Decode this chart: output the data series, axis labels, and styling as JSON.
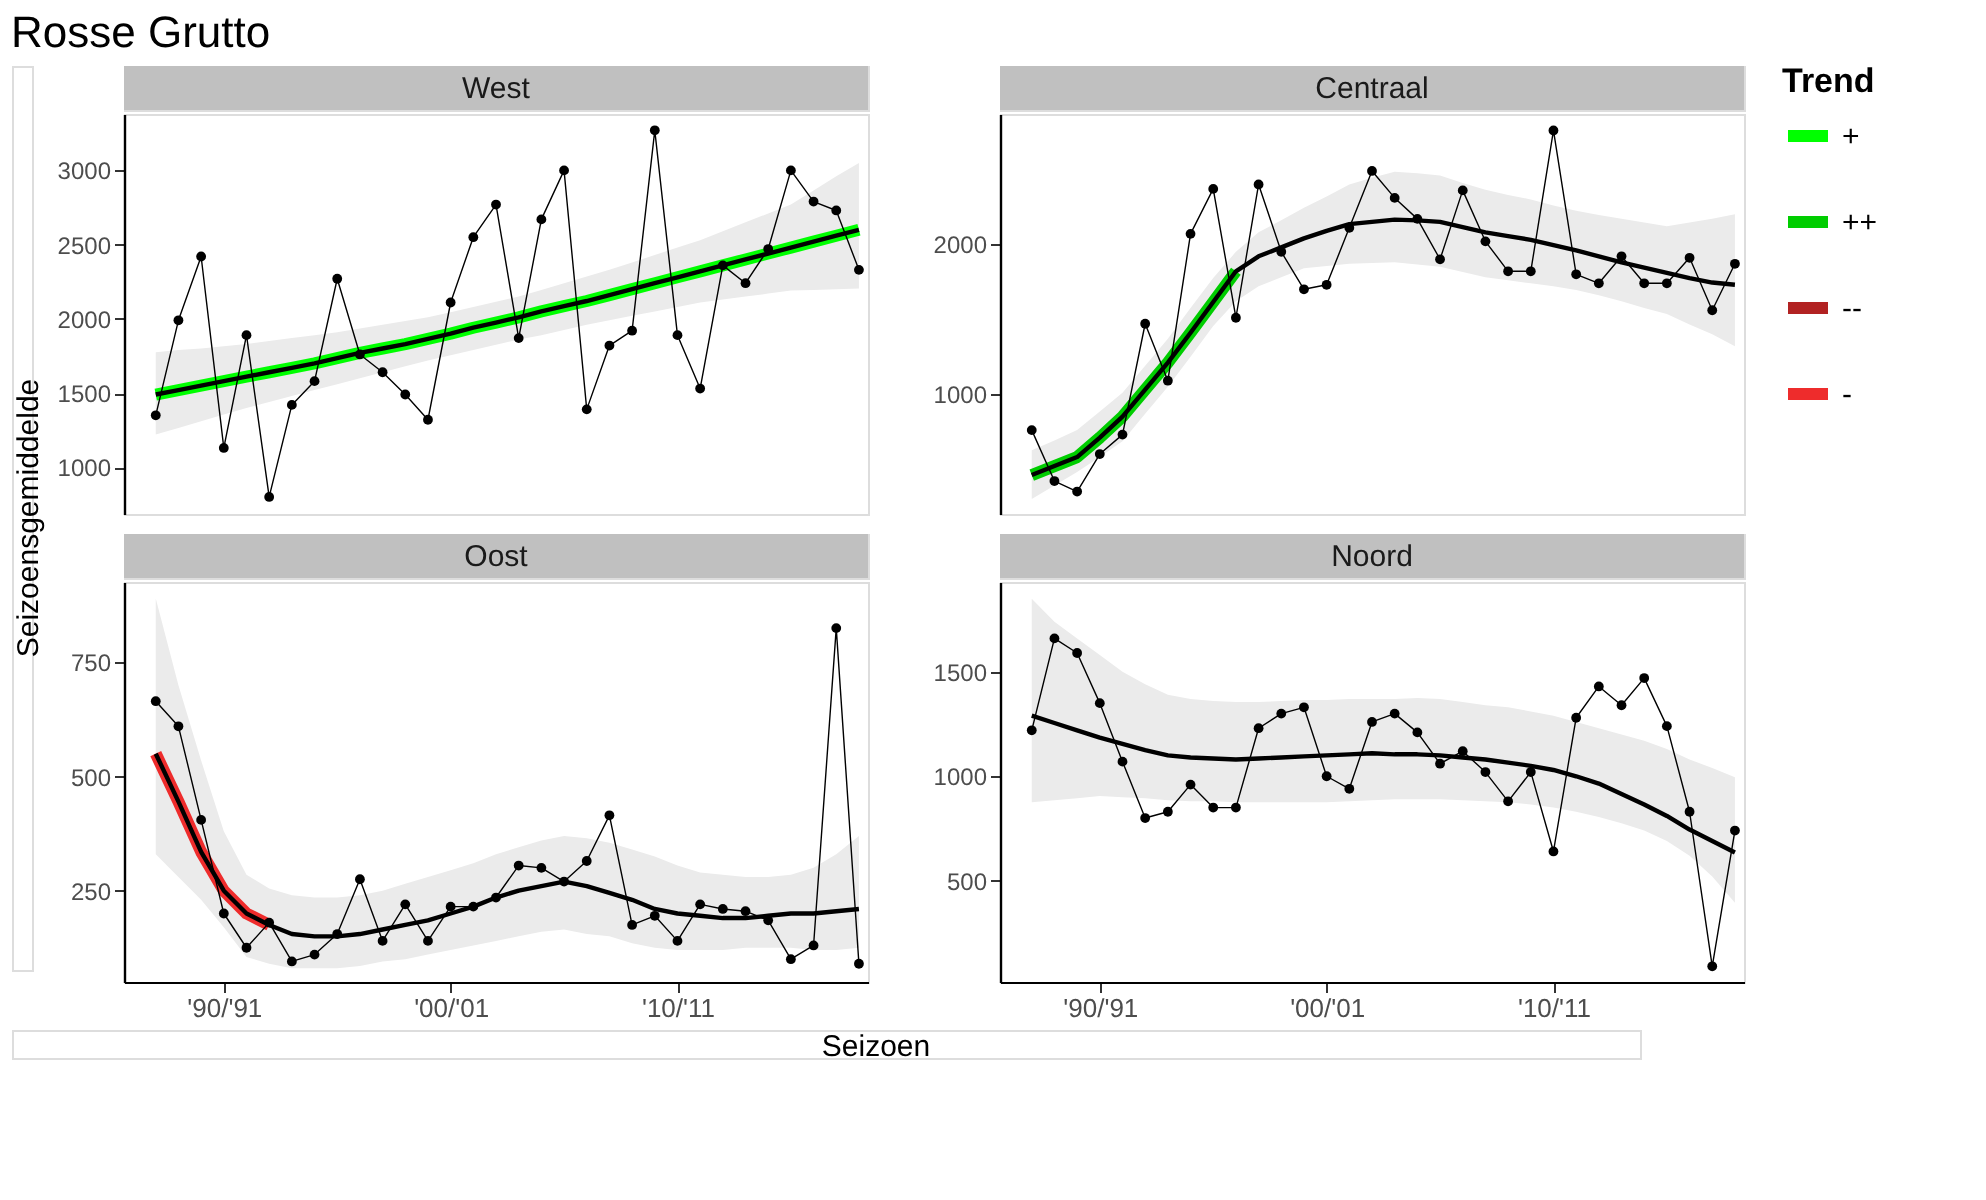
{
  "chart_data": [
    {
      "type": "line",
      "title": "West",
      "annotations": [
        "Rosse Grutto"
      ],
      "xlabel": "Seizoen",
      "ylabel": "Seizoensgemiddelde",
      "legend_title": "Trend",
      "legend": "right",
      "tick_labels": "y",
      "line_style": "solid",
      "categories": [
        null,
        null,
        null,
        null,
        null,
        null,
        null,
        null,
        null,
        null,
        null,
        null,
        null,
        null,
        null,
        null,
        null,
        null,
        null,
        null,
        null,
        null,
        null,
        null,
        null,
        null,
        null,
        null,
        null,
        null,
        null,
        null
      ],
      "ylim": [
        685,
        3380
      ],
      "yticks": [
        1000,
        1500,
        2000,
        2500,
        3000
      ],
      "series": [
        {
          "marker": "circle",
          "color": "#000000",
          "values": [
            1350,
            1990,
            2420,
            1130,
            1890,
            800,
            1420,
            1580,
            2270,
            1760,
            1640,
            1490,
            1320,
            2110,
            2550,
            2770,
            1870,
            2670,
            3000,
            1390,
            1820,
            1920,
            3270,
            1890,
            1530,
            2360,
            2240,
            2470,
            3000,
            2790,
            2730,
            2330
          ]
        },
        {
          "name": "+",
          "color": "#00ff00",
          "values": [
            1490,
            1520,
            1550,
            1580,
            1610,
            1640,
            1670,
            1700,
            1735,
            1770,
            1800,
            1830,
            1865,
            1900,
            1940,
            1975,
            2010,
            2050,
            2085,
            2120,
            2160,
            2200,
            2240,
            2280,
            2320,
            2360,
            2400,
            2440,
            2480,
            2520,
            2560,
            2600
          ]
        },
        {
          "color": "#000000",
          "values": [
            1490,
            1520,
            1550,
            1580,
            1610,
            1640,
            1670,
            1700,
            1735,
            1770,
            1800,
            1830,
            1865,
            1900,
            1940,
            1975,
            2010,
            2050,
            2085,
            2120,
            2160,
            2200,
            2240,
            2280,
            2320,
            2360,
            2400,
            2440,
            2480,
            2520,
            2560,
            2600
          ],
          "lower": [
            1220,
            1265,
            1310,
            1355,
            1400,
            1440,
            1480,
            1520,
            1560,
            1600,
            1640,
            1680,
            1720,
            1755,
            1790,
            1825,
            1860,
            1890,
            1925,
            1960,
            1990,
            2020,
            2050,
            2080,
            2110,
            2130,
            2150,
            2170,
            2190,
            2195,
            2200,
            2205
          ],
          "upper": [
            1775,
            1790,
            1800,
            1815,
            1830,
            1850,
            1870,
            1890,
            1910,
            1935,
            1960,
            1985,
            2010,
            2045,
            2080,
            2115,
            2150,
            2195,
            2240,
            2285,
            2330,
            2380,
            2430,
            2480,
            2530,
            2590,
            2650,
            2710,
            2770,
            2865,
            2960,
            3050
          ]
        }
      ]
    },
    {
      "type": "line",
      "title": "Centraal",
      "tick_labels": "y",
      "line_style": "solid",
      "categories": [
        null,
        null,
        null,
        null,
        null,
        null,
        null,
        null,
        null,
        null,
        null,
        null,
        null,
        null,
        null,
        null,
        null,
        null,
        null,
        null,
        null,
        null,
        null,
        null,
        null,
        null,
        null,
        null,
        null,
        null,
        null,
        null
      ],
      "ylim": [
        200,
        2870
      ],
      "yticks": [
        1000,
        2000
      ],
      "series": [
        {
          "marker": "circle",
          "color": "#000000",
          "values": [
            760,
            420,
            350,
            600,
            730,
            1470,
            1090,
            2070,
            2370,
            1510,
            2400,
            1950,
            1700,
            1730,
            2110,
            2490,
            2310,
            2170,
            1900,
            2360,
            2020,
            1820,
            1820,
            2760,
            1800,
            1740,
            1920,
            1740,
            1740,
            1910,
            1560,
            1870
          ]
        },
        {
          "name": "++",
          "color": "#00cd00",
          "values": [
            460,
            520,
            580,
            710,
            850,
            1030,
            1210,
            1410,
            1615,
            1820,
            null,
            null,
            null,
            null,
            null,
            null,
            null,
            null,
            null,
            null,
            null,
            null,
            null,
            null,
            null,
            null,
            null,
            null,
            null,
            null,
            null,
            null
          ]
        },
        {
          "color": "#000000",
          "values": [
            460,
            520,
            580,
            710,
            850,
            1030,
            1210,
            1410,
            1615,
            1820,
            1920,
            1980,
            2040,
            2090,
            2135,
            2150,
            2165,
            2160,
            2150,
            2115,
            2080,
            2055,
            2030,
            1995,
            1960,
            1920,
            1880,
            1845,
            1810,
            1775,
            1745,
            1730
          ],
          "lower": [
            300,
            390,
            480,
            580,
            685,
            870,
            1050,
            1250,
            1455,
            1620,
            1720,
            1780,
            1840,
            1855,
            1870,
            1875,
            1880,
            1865,
            1850,
            1815,
            1780,
            1760,
            1740,
            1720,
            1695,
            1660,
            1620,
            1575,
            1535,
            1465,
            1400,
            1320
          ],
          "upper": [
            625,
            690,
            760,
            885,
            1010,
            1190,
            1370,
            1575,
            1775,
            1950,
            2080,
            2160,
            2245,
            2320,
            2400,
            2445,
            2485,
            2475,
            2460,
            2410,
            2365,
            2330,
            2300,
            2260,
            2225,
            2195,
            2170,
            2145,
            2120,
            2145,
            2170,
            2200
          ]
        }
      ]
    },
    {
      "type": "line",
      "title": "Oost",
      "line_style": "solid",
      "categories": [
        null,
        null,
        null,
        "'90/'91",
        null,
        null,
        null,
        null,
        null,
        null,
        null,
        null,
        null,
        "'00/'01",
        null,
        null,
        null,
        null,
        null,
        null,
        null,
        null,
        null,
        "'10/'11",
        null,
        null,
        null,
        null,
        null,
        null,
        null,
        null
      ],
      "ylim": [
        50,
        926
      ],
      "yticks": [
        250,
        500,
        750
      ],
      "series": [
        {
          "marker": "circle",
          "color": "#000000",
          "values": [
            665,
            610,
            405,
            200,
            125,
            180,
            95,
            110,
            155,
            275,
            140,
            220,
            140,
            215,
            215,
            235,
            305,
            300,
            270,
            315,
            415,
            175,
            195,
            140,
            220,
            210,
            205,
            185,
            100,
            130,
            825,
            90
          ]
        },
        {
          "name": "--",
          "color": "#b22222",
          "values": [
            null,
            null,
            null,
            null,
            null,
            null,
            null,
            null,
            null,
            null,
            null,
            null,
            null,
            null,
            null,
            null,
            null,
            null,
            null,
            null,
            null,
            null,
            null,
            null,
            null,
            null,
            null,
            null,
            null,
            null,
            null,
            null
          ]
        },
        {
          "name": "-",
          "color": "#ee2c2c",
          "values": [
            550,
            445,
            335,
            250,
            200,
            175,
            null,
            null,
            null,
            null,
            null,
            null,
            null,
            null,
            null,
            null,
            null,
            null,
            null,
            null,
            null,
            null,
            null,
            null,
            null,
            null,
            null,
            null,
            null,
            null,
            null,
            null
          ]
        },
        {
          "color": "#000000",
          "values": [
            550,
            445,
            335,
            250,
            200,
            175,
            155,
            150,
            150,
            155,
            165,
            175,
            185,
            200,
            215,
            235,
            250,
            260,
            270,
            260,
            245,
            230,
            210,
            200,
            195,
            190,
            190,
            195,
            200,
            200,
            205,
            210
          ],
          "lower": [
            330,
            280,
            230,
            170,
            105,
            90,
            80,
            80,
            80,
            85,
            95,
            100,
            110,
            120,
            130,
            140,
            150,
            160,
            165,
            155,
            150,
            135,
            125,
            120,
            120,
            120,
            125,
            125,
            125,
            120,
            120,
            125
          ],
          "upper": [
            890,
            700,
            535,
            380,
            285,
            255,
            240,
            235,
            235,
            240,
            250,
            265,
            280,
            295,
            310,
            330,
            345,
            360,
            370,
            365,
            355,
            340,
            325,
            305,
            290,
            285,
            280,
            280,
            285,
            300,
            330,
            370
          ]
        }
      ]
    },
    {
      "type": "line",
      "title": "Noord",
      "line_style": "solid",
      "categories": [
        null,
        null,
        null,
        "'90/'91",
        null,
        null,
        null,
        null,
        null,
        null,
        null,
        null,
        null,
        "'00/'01",
        null,
        null,
        null,
        null,
        null,
        null,
        null,
        null,
        null,
        "'10/'11",
        null,
        null,
        null,
        null,
        null,
        null,
        null,
        null
      ],
      "ylim": [
        15,
        1930
      ],
      "yticks": [
        500,
        1000,
        1500
      ],
      "series": [
        {
          "marker": "circle",
          "color": "#000000",
          "values": [
            1220,
            1660,
            1590,
            1350,
            1070,
            800,
            830,
            960,
            850,
            850,
            1230,
            1300,
            1330,
            1000,
            940,
            1260,
            1300,
            1210,
            1060,
            1120,
            1020,
            880,
            1020,
            640,
            1280,
            1430,
            1340,
            1470,
            1240,
            830,
            90,
            740
          ]
        },
        {
          "color": "#000000",
          "values": [
            1290,
            1255,
            1220,
            1185,
            1155,
            1125,
            1100,
            1090,
            1085,
            1080,
            1085,
            1090,
            1095,
            1100,
            1105,
            1110,
            1105,
            1105,
            1100,
            1090,
            1080,
            1065,
            1050,
            1030,
            1000,
            965,
            915,
            865,
            810,
            745,
            690,
            635
          ],
          "lower": [
            875,
            885,
            895,
            905,
            900,
            895,
            885,
            880,
            880,
            875,
            875,
            875,
            875,
            875,
            880,
            885,
            890,
            890,
            890,
            885,
            880,
            875,
            865,
            850,
            830,
            805,
            775,
            740,
            690,
            620,
            520,
            395
          ],
          "upper": [
            1850,
            1740,
            1660,
            1580,
            1500,
            1440,
            1390,
            1370,
            1360,
            1355,
            1355,
            1360,
            1365,
            1365,
            1370,
            1370,
            1370,
            1375,
            1370,
            1355,
            1340,
            1330,
            1310,
            1290,
            1260,
            1230,
            1200,
            1170,
            1130,
            1080,
            1040,
            995
          ]
        }
      ]
    }
  ]
}
